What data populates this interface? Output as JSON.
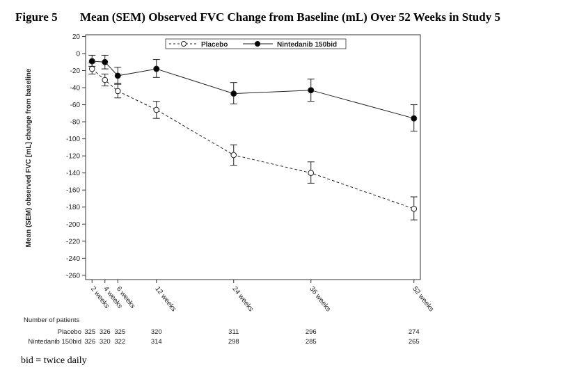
{
  "figure": {
    "label": "Figure 5",
    "title": "Mean (SEM) Observed FVC Change from Baseline (mL) Over 52 Weeks in Study 5",
    "footnote": "bid = twice daily"
  },
  "chart_data": {
    "type": "line",
    "ylabel": "Mean (SEM) observed FVC [mL] change from baseline",
    "ylim": [
      -265,
      22
    ],
    "yticks": [
      20,
      0,
      -20,
      -40,
      -60,
      -80,
      -100,
      -120,
      -140,
      -160,
      -180,
      -200,
      -220,
      -240,
      -260
    ],
    "x": [
      2,
      4,
      6,
      12,
      24,
      36,
      52
    ],
    "xlim": [
      1,
      53
    ],
    "x_tick_labels": [
      "2 weeks",
      "4 weeks",
      "6 weeks",
      "12 weeks",
      "24 weeks",
      "36 weeks",
      "52 weeks"
    ],
    "legend_position": "top-center",
    "series": [
      {
        "name": "Placebo",
        "marker": "open-circle",
        "line": "dashed",
        "values": [
          -18,
          -31,
          -44,
          -66,
          -119,
          -140,
          -182
        ],
        "err_low": [
          -24,
          -38,
          -52,
          -76,
          -131,
          -152,
          -195
        ],
        "err_high": [
          -11,
          -24,
          -36,
          -56,
          -107,
          -127,
          -168
        ]
      },
      {
        "name": "Nintedanib 150bid",
        "marker": "filled-circle",
        "line": "solid",
        "values": [
          -9,
          -10,
          -26,
          -18,
          -47,
          -43,
          -76
        ],
        "err_low": [
          -15,
          -18,
          -35,
          -28,
          -59,
          -56,
          -91
        ],
        "err_high": [
          -2,
          -2,
          -16,
          -7,
          -34,
          -30,
          -60
        ]
      }
    ],
    "patients_table": {
      "title": "Number of patients",
      "rows": [
        {
          "name": "Placebo",
          "values": [
            "325",
            "326",
            "325",
            "320",
            "311",
            "296",
            "274"
          ]
        },
        {
          "name": "Nintedanib 150bid",
          "values": [
            "326",
            "320",
            "322",
            "314",
            "298",
            "285",
            "265"
          ]
        }
      ]
    }
  }
}
